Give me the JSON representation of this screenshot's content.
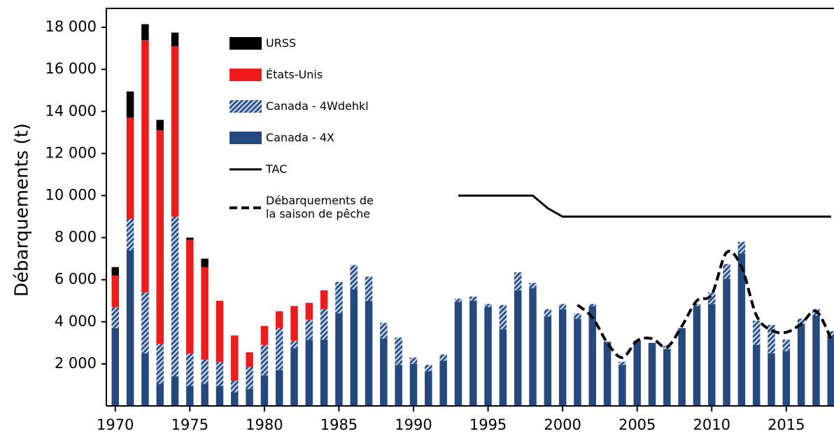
{
  "chart_data": {
    "type": "stacked_bar",
    "y_label": "Débarquements (t)",
    "x": [
      1970,
      1971,
      1972,
      1973,
      1974,
      1975,
      1976,
      1977,
      1978,
      1979,
      1980,
      1981,
      1982,
      1983,
      1984,
      1985,
      1986,
      1987,
      1988,
      1989,
      1990,
      1991,
      1992,
      1993,
      1994,
      1995,
      1996,
      1997,
      1998,
      1999,
      2000,
      2001,
      2002,
      2003,
      2004,
      2005,
      2006,
      2007,
      2008,
      2009,
      2010,
      2011,
      2012,
      2013,
      2014,
      2015,
      2016,
      2017,
      2018
    ],
    "series": [
      {
        "name": "Canada - 4X",
        "color": "#24497f",
        "values": [
          3700,
          7400,
          2500,
          1050,
          1400,
          950,
          1050,
          950,
          650,
          800,
          1450,
          1700,
          2750,
          3150,
          3150,
          4400,
          5550,
          5000,
          3200,
          1950,
          2000,
          1650,
          2150,
          4950,
          5000,
          4700,
          3650,
          5500,
          5600,
          4250,
          4600,
          4150,
          4750,
          3050,
          1950,
          3100,
          3000,
          2700,
          3700,
          4750,
          4850,
          6050,
          7250,
          2900,
          2500,
          2600,
          3900,
          4300,
          3300
        ]
      },
      {
        "name": "Canada - 4Wdehkl",
        "color": "#24497f",
        "hatch": true,
        "values": [
          1000,
          1500,
          2900,
          1900,
          7600,
          1550,
          1150,
          1150,
          550,
          1050,
          1450,
          2000,
          350,
          950,
          1450,
          1500,
          1150,
          1150,
          750,
          1300,
          300,
          300,
          300,
          150,
          200,
          150,
          1150,
          850,
          250,
          350,
          250,
          250,
          100,
          0,
          150,
          0,
          0,
          150,
          0,
          100,
          550,
          700,
          550,
          1150,
          1350,
          550,
          250,
          300,
          250
        ]
      },
      {
        "name": "États-Unis",
        "color": "#ee1c1c",
        "values": [
          1500,
          4800,
          12000,
          10150,
          8100,
          5400,
          4400,
          2900,
          2150,
          700,
          900,
          800,
          1650,
          800,
          900,
          0,
          0,
          0,
          0,
          0,
          0,
          0,
          0,
          0,
          0,
          0,
          0,
          0,
          0,
          0,
          0,
          0,
          0,
          0,
          0,
          0,
          0,
          0,
          0,
          0,
          0,
          0,
          0,
          0,
          0,
          0,
          0,
          0,
          0
        ]
      },
      {
        "name": "URSS",
        "color": "#000000",
        "values": [
          400,
          1250,
          750,
          500,
          650,
          100,
          400,
          0,
          0,
          0,
          0,
          0,
          0,
          0,
          0,
          0,
          0,
          0,
          0,
          0,
          0,
          0,
          0,
          0,
          0,
          0,
          0,
          0,
          0,
          0,
          0,
          0,
          0,
          0,
          0,
          0,
          0,
          0,
          0,
          0,
          0,
          0,
          0,
          0,
          0,
          0,
          0,
          0,
          0
        ]
      }
    ],
    "lines": [
      {
        "name": "TAC",
        "color": "#000000",
        "dash": false,
        "x": [
          1993,
          1998,
          1999,
          2000,
          2018
        ],
        "values": [
          10000,
          10000,
          9400,
          9000,
          9000
        ]
      },
      {
        "name": "Débarquements de la saison de pêche",
        "color": "#000000",
        "dash": true,
        "x": [
          2001,
          2002,
          2003,
          2004,
          2005,
          2006,
          2007,
          2008,
          2009,
          2010,
          2011,
          2012,
          2013,
          2014,
          2015,
          2016,
          2017,
          2018
        ],
        "values": [
          4800,
          4200,
          3000,
          2300,
          3100,
          3200,
          2800,
          3800,
          5000,
          5300,
          7300,
          6600,
          4300,
          3600,
          3500,
          3900,
          4500,
          3200
        ]
      }
    ],
    "xlim": [
      1969.4,
      2018.2
    ],
    "xticks": [
      1970,
      1975,
      1980,
      1985,
      1990,
      1995,
      2000,
      2005,
      2010,
      2015
    ],
    "ylim": [
      0,
      18900
    ],
    "yticks": [
      {
        "value": 2000,
        "label": "2 000"
      },
      {
        "value": 4000,
        "label": "4 000"
      },
      {
        "value": 6000,
        "label": "6 000"
      },
      {
        "value": 8000,
        "label": "8 000"
      },
      {
        "value": 10000,
        "label": "10 000"
      },
      {
        "value": 12000,
        "label": "12 000"
      },
      {
        "value": 14000,
        "label": "14 000"
      },
      {
        "value": 16000,
        "label": "16 000"
      },
      {
        "value": 18000,
        "label": "18 000"
      }
    ]
  }
}
